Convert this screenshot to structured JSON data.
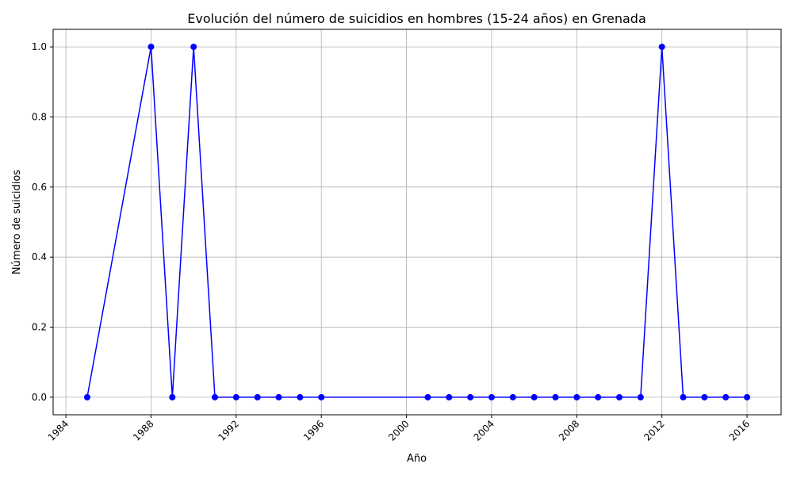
{
  "chart_data": {
    "type": "line",
    "title": "Evolución del número de suicidios en hombres (15-24 años) en Grenada",
    "xlabel": "Año",
    "ylabel": "Número de suicidios",
    "xlim": [
      1983.4,
      2017.6
    ],
    "ylim": [
      -0.05,
      1.05
    ],
    "x_ticks": [
      1984,
      1988,
      1992,
      1996,
      2000,
      2004,
      2008,
      2012,
      2016
    ],
    "y_ticks": [
      0.0,
      0.2,
      0.4,
      0.6,
      0.8,
      1.0
    ],
    "y_tick_labels": [
      "0.0",
      "0.2",
      "0.4",
      "0.6",
      "0.8",
      "1.0"
    ],
    "grid": true,
    "x_tick_rotation_deg": 45,
    "series": [
      {
        "color": "#0000ff",
        "marker": "circle",
        "x": [
          1985,
          1988,
          1989,
          1990,
          1991,
          1992,
          1993,
          1994,
          1995,
          1996,
          2001,
          2002,
          2003,
          2004,
          2005,
          2006,
          2007,
          2008,
          2009,
          2010,
          2011,
          2012,
          2013,
          2014,
          2015,
          2016
        ],
        "y": [
          0,
          1,
          0,
          1,
          0,
          0,
          0,
          0,
          0,
          0,
          0,
          0,
          0,
          0,
          0,
          0,
          0,
          0,
          0,
          0,
          0,
          1,
          0,
          0,
          0,
          0
        ]
      }
    ]
  }
}
